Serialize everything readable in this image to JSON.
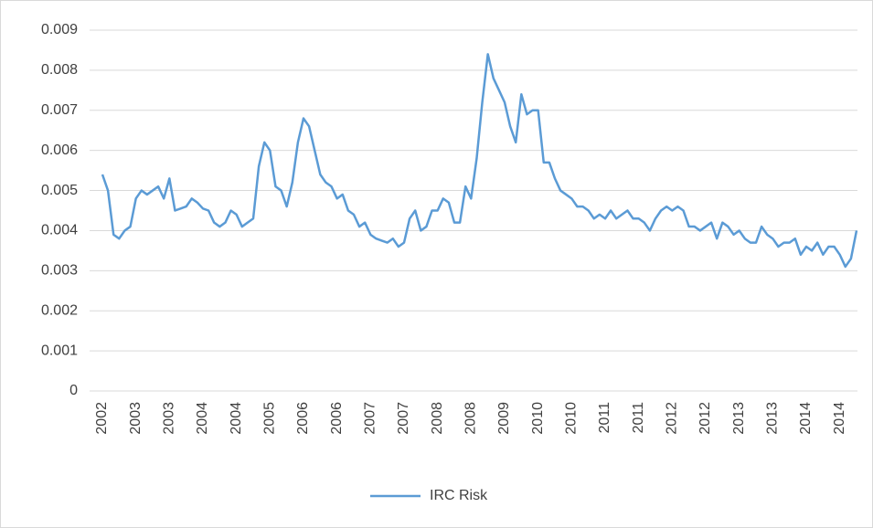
{
  "chart_data": {
    "type": "line",
    "categories": [
      "2002",
      null,
      null,
      null,
      null,
      null,
      "2003",
      null,
      null,
      null,
      null,
      null,
      "2003",
      null,
      null,
      null,
      null,
      null,
      "2004",
      null,
      null,
      null,
      null,
      null,
      "2004",
      null,
      null,
      null,
      null,
      null,
      "2005",
      null,
      null,
      null,
      null,
      null,
      "2006",
      null,
      null,
      null,
      null,
      null,
      "2006",
      null,
      null,
      null,
      null,
      null,
      "2007",
      null,
      null,
      null,
      null,
      null,
      "2007",
      null,
      null,
      null,
      null,
      null,
      "2008",
      null,
      null,
      null,
      null,
      null,
      "2008",
      null,
      null,
      null,
      null,
      null,
      "2009",
      null,
      null,
      null,
      null,
      null,
      "2010",
      null,
      null,
      null,
      null,
      null,
      "2010",
      null,
      null,
      null,
      null,
      null,
      "2011",
      null,
      null,
      null,
      null,
      null,
      "2011",
      null,
      null,
      null,
      null,
      null,
      "2012",
      null,
      null,
      null,
      null,
      null,
      "2012",
      null,
      null,
      null,
      null,
      null,
      "2013",
      null,
      null,
      null,
      null,
      null,
      "2013",
      null,
      null,
      null,
      null,
      null,
      "2014",
      null,
      null,
      null,
      null,
      null,
      "2014",
      null,
      null,
      null
    ],
    "series": [
      {
        "name": "IRC Risk",
        "color": "#5b9bd5",
        "values": [
          0.0054,
          0.005,
          0.0039,
          0.0038,
          0.004,
          0.0041,
          0.0048,
          0.005,
          0.0049,
          0.005,
          0.0051,
          0.0048,
          0.0053,
          0.0045,
          0.00455,
          0.0046,
          0.0048,
          0.0047,
          0.00455,
          0.0045,
          0.0042,
          0.0041,
          0.0042,
          0.0045,
          0.0044,
          0.0041,
          0.0042,
          0.0043,
          0.0056,
          0.0062,
          0.006,
          0.0051,
          0.005,
          0.0046,
          0.0052,
          0.0062,
          0.0068,
          0.0066,
          0.006,
          0.0054,
          0.0052,
          0.0051,
          0.0048,
          0.0049,
          0.0045,
          0.0044,
          0.0041,
          0.0042,
          0.0039,
          0.0038,
          0.00375,
          0.0037,
          0.0038,
          0.0036,
          0.0037,
          0.0043,
          0.0045,
          0.004,
          0.0041,
          0.0045,
          0.0045,
          0.0048,
          0.0047,
          0.0042,
          0.0042,
          0.0051,
          0.0048,
          0.0058,
          0.0072,
          0.0084,
          0.0078,
          0.0075,
          0.0072,
          0.0066,
          0.0062,
          0.0074,
          0.0069,
          0.007,
          0.007,
          0.0057,
          0.0057,
          0.0053,
          0.005,
          0.0049,
          0.0048,
          0.0046,
          0.0046,
          0.0045,
          0.0043,
          0.0044,
          0.0043,
          0.0045,
          0.0043,
          0.0044,
          0.0045,
          0.0043,
          0.0043,
          0.0042,
          0.004,
          0.0043,
          0.0045,
          0.0046,
          0.0045,
          0.0046,
          0.0045,
          0.0041,
          0.0041,
          0.004,
          0.0041,
          0.0042,
          0.0038,
          0.0042,
          0.0041,
          0.0039,
          0.004,
          0.0038,
          0.0037,
          0.0037,
          0.0041,
          0.0039,
          0.0038,
          0.0036,
          0.0037,
          0.0037,
          0.0038,
          0.0034,
          0.0036,
          0.0035,
          0.0037,
          0.0034,
          0.0036,
          0.0036,
          0.0034,
          0.0031,
          0.0033,
          0.004
        ]
      }
    ],
    "ylim": [
      0,
      0.009
    ],
    "yticks": [
      0,
      0.001,
      0.002,
      0.003,
      0.004,
      0.005,
      0.006,
      0.007,
      0.008,
      0.009
    ],
    "grid": true,
    "legend": "bottom"
  }
}
